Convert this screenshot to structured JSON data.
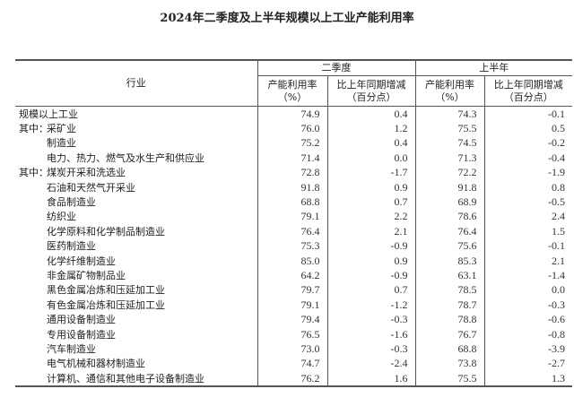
{
  "title": "2024年二季度及上半年规模以上工业产能利用率",
  "header": {
    "industry": "行业",
    "groups": [
      "二季度",
      "上半年"
    ],
    "rate": "产能利用率",
    "rate_unit": "（%）",
    "change": "比上年同期增减",
    "change_unit": "（百分点）"
  },
  "rows": [
    {
      "prefix": "",
      "name": "规模以上工业",
      "indent": false,
      "q2_rate": "74.9",
      "q2_change": "0.4",
      "h1_rate": "74.3",
      "h1_change": "-0.1"
    },
    {
      "prefix": "其中：",
      "name": "采矿业",
      "indent": false,
      "q2_rate": "76.0",
      "q2_change": "1.2",
      "h1_rate": "75.5",
      "h1_change": "0.5"
    },
    {
      "prefix": "",
      "name": "制造业",
      "indent": true,
      "q2_rate": "75.2",
      "q2_change": "0.4",
      "h1_rate": "74.5",
      "h1_change": "-0.2"
    },
    {
      "prefix": "",
      "name": "电力、热力、燃气及水生产和供应业",
      "indent": true,
      "q2_rate": "71.4",
      "q2_change": "0.0",
      "h1_rate": "71.3",
      "h1_change": "-0.4"
    },
    {
      "prefix": "其中：",
      "name": "煤炭开采和洗选业",
      "indent": false,
      "q2_rate": "72.8",
      "q2_change": "-1.7",
      "h1_rate": "72.2",
      "h1_change": "-1.9"
    },
    {
      "prefix": "",
      "name": "石油和天然气开采业",
      "indent": true,
      "q2_rate": "91.8",
      "q2_change": "0.9",
      "h1_rate": "91.8",
      "h1_change": "0.8"
    },
    {
      "prefix": "",
      "name": "食品制造业",
      "indent": true,
      "q2_rate": "68.8",
      "q2_change": "0.7",
      "h1_rate": "68.9",
      "h1_change": "-0.5"
    },
    {
      "prefix": "",
      "name": "纺织业",
      "indent": true,
      "q2_rate": "79.1",
      "q2_change": "2.2",
      "h1_rate": "78.6",
      "h1_change": "2.4"
    },
    {
      "prefix": "",
      "name": "化学原料和化学制品制造业",
      "indent": true,
      "q2_rate": "76.4",
      "q2_change": "2.1",
      "h1_rate": "76.4",
      "h1_change": "1.5"
    },
    {
      "prefix": "",
      "name": "医药制造业",
      "indent": true,
      "q2_rate": "75.3",
      "q2_change": "-0.9",
      "h1_rate": "75.6",
      "h1_change": "-0.1"
    },
    {
      "prefix": "",
      "name": "化学纤维制造业",
      "indent": true,
      "q2_rate": "85.0",
      "q2_change": "0.9",
      "h1_rate": "85.3",
      "h1_change": "2.1"
    },
    {
      "prefix": "",
      "name": "非金属矿物制品业",
      "indent": true,
      "q2_rate": "64.2",
      "q2_change": "-0.9",
      "h1_rate": "63.1",
      "h1_change": "-1.4"
    },
    {
      "prefix": "",
      "name": "黑色金属冶炼和压延加工业",
      "indent": true,
      "q2_rate": "79.7",
      "q2_change": "0.7",
      "h1_rate": "78.5",
      "h1_change": "0.0"
    },
    {
      "prefix": "",
      "name": "有色金属冶炼和压延加工业",
      "indent": true,
      "q2_rate": "79.1",
      "q2_change": "-1.2",
      "h1_rate": "78.7",
      "h1_change": "-0.3"
    },
    {
      "prefix": "",
      "name": "通用设备制造业",
      "indent": true,
      "q2_rate": "79.4",
      "q2_change": "-0.3",
      "h1_rate": "78.8",
      "h1_change": "-0.6"
    },
    {
      "prefix": "",
      "name": "专用设备制造业",
      "indent": true,
      "q2_rate": "76.5",
      "q2_change": "-1.6",
      "h1_rate": "76.7",
      "h1_change": "-0.8"
    },
    {
      "prefix": "",
      "name": "汽车制造业",
      "indent": true,
      "q2_rate": "73.0",
      "q2_change": "-0.3",
      "h1_rate": "68.8",
      "h1_change": "-3.9"
    },
    {
      "prefix": "",
      "name": "电气机械和器材制造业",
      "indent": true,
      "q2_rate": "74.7",
      "q2_change": "-2.4",
      "h1_rate": "73.8",
      "h1_change": "-2.7"
    },
    {
      "prefix": "",
      "name": "计算机、通信和其他电子设备制造业",
      "indent": true,
      "q2_rate": "76.2",
      "q2_change": "1.6",
      "h1_rate": "75.5",
      "h1_change": "1.3"
    }
  ]
}
